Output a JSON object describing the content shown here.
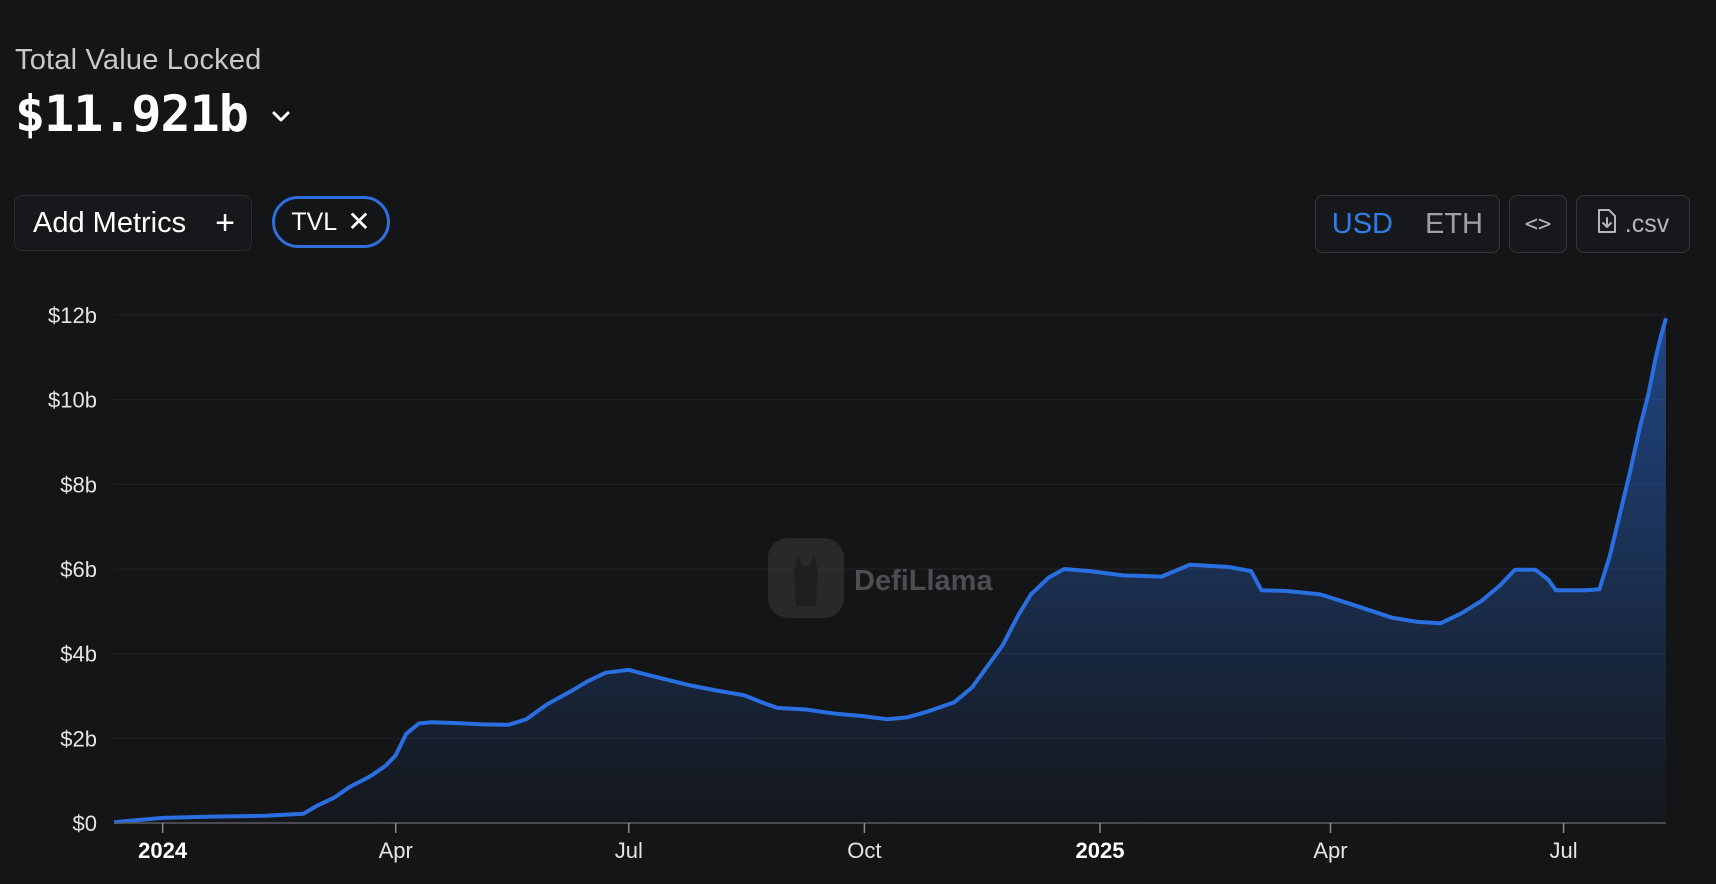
{
  "header": {
    "title": "Total Value Locked",
    "value": "$11.921b"
  },
  "toolbar": {
    "add_metrics_label": "Add Metrics",
    "chip_label": "TVL",
    "usd_label": "USD",
    "eth_label": "ETH",
    "embed_label": "<>",
    "csv_label": ".csv"
  },
  "watermark": "DefiLlama",
  "colors": {
    "accent": "#2f7fe6",
    "line": "#2a6fe0",
    "background": "#141517"
  },
  "chart_data": {
    "type": "area",
    "ylim": [
      0,
      12
    ],
    "y_unit": "$b",
    "y_ticks": [
      "$0",
      "$2b",
      "$4b",
      "$6b",
      "$8b",
      "$10b",
      "$12b"
    ],
    "x_ticks": [
      {
        "label": "2024",
        "date": "2024-01-01",
        "bold": true
      },
      {
        "label": "Apr",
        "date": "2024-04-01",
        "bold": false
      },
      {
        "label": "Jul",
        "date": "2024-07-01",
        "bold": false
      },
      {
        "label": "Oct",
        "date": "2024-10-01",
        "bold": false
      },
      {
        "label": "2025",
        "date": "2025-01-01",
        "bold": true
      },
      {
        "label": "Apr",
        "date": "2025-04-01",
        "bold": false
      },
      {
        "label": "Jul",
        "date": "2025-07-01",
        "bold": false
      }
    ],
    "x_range": [
      "2023-12-13",
      "2025-08-10"
    ],
    "grid": true,
    "series": [
      {
        "points": [
          [
            "2023-12-13",
            0.02
          ],
          [
            "2024-01-01",
            0.12
          ],
          [
            "2024-01-20",
            0.15
          ],
          [
            "2024-02-10",
            0.17
          ],
          [
            "2024-02-25",
            0.22
          ],
          [
            "2024-03-01",
            0.4
          ],
          [
            "2024-03-08",
            0.6
          ],
          [
            "2024-03-14",
            0.85
          ],
          [
            "2024-03-22",
            1.1
          ],
          [
            "2024-03-28",
            1.35
          ],
          [
            "2024-04-01",
            1.6
          ],
          [
            "2024-04-05",
            2.1
          ],
          [
            "2024-04-10",
            2.35
          ],
          [
            "2024-04-15",
            2.38
          ],
          [
            "2024-04-25",
            2.36
          ],
          [
            "2024-05-05",
            2.33
          ],
          [
            "2024-05-15",
            2.32
          ],
          [
            "2024-05-22",
            2.45
          ],
          [
            "2024-05-30",
            2.8
          ],
          [
            "2024-06-08",
            3.1
          ],
          [
            "2024-06-15",
            3.35
          ],
          [
            "2024-06-22",
            3.55
          ],
          [
            "2024-07-01",
            3.62
          ],
          [
            "2024-07-05",
            3.55
          ],
          [
            "2024-07-15",
            3.4
          ],
          [
            "2024-07-25",
            3.25
          ],
          [
            "2024-08-05",
            3.12
          ],
          [
            "2024-08-15",
            3.02
          ],
          [
            "2024-08-22",
            2.85
          ],
          [
            "2024-08-28",
            2.72
          ],
          [
            "2024-09-08",
            2.68
          ],
          [
            "2024-09-20",
            2.58
          ],
          [
            "2024-10-01",
            2.52
          ],
          [
            "2024-10-10",
            2.45
          ],
          [
            "2024-10-18",
            2.5
          ],
          [
            "2024-10-25",
            2.62
          ],
          [
            "2024-11-05",
            2.85
          ],
          [
            "2024-11-12",
            3.2
          ],
          [
            "2024-11-18",
            3.7
          ],
          [
            "2024-11-24",
            4.2
          ],
          [
            "2024-11-30",
            4.9
          ],
          [
            "2024-12-05",
            5.4
          ],
          [
            "2024-12-12",
            5.8
          ],
          [
            "2024-12-18",
            6.0
          ],
          [
            "2024-12-28",
            5.95
          ],
          [
            "2025-01-10",
            5.85
          ],
          [
            "2025-01-25",
            5.82
          ],
          [
            "2025-02-05",
            6.1
          ],
          [
            "2025-02-20",
            6.05
          ],
          [
            "2025-03-01",
            5.95
          ],
          [
            "2025-03-05",
            5.5
          ],
          [
            "2025-03-15",
            5.48
          ],
          [
            "2025-03-28",
            5.4
          ],
          [
            "2025-04-05",
            5.25
          ],
          [
            "2025-04-15",
            5.05
          ],
          [
            "2025-04-25",
            4.85
          ],
          [
            "2025-05-05",
            4.75
          ],
          [
            "2025-05-14",
            4.72
          ],
          [
            "2025-05-22",
            4.95
          ],
          [
            "2025-05-30",
            5.25
          ],
          [
            "2025-06-06",
            5.6
          ],
          [
            "2025-06-12",
            5.98
          ],
          [
            "2025-06-20",
            5.98
          ],
          [
            "2025-06-25",
            5.75
          ],
          [
            "2025-06-28",
            5.5
          ],
          [
            "2025-07-10",
            5.5
          ],
          [
            "2025-07-15",
            5.52
          ],
          [
            "2025-07-19",
            6.3
          ],
          [
            "2025-07-23",
            7.3
          ],
          [
            "2025-07-27",
            8.3
          ],
          [
            "2025-07-31",
            9.4
          ],
          [
            "2025-08-03",
            10.1
          ],
          [
            "2025-08-06",
            11.0
          ],
          [
            "2025-08-08",
            11.5
          ],
          [
            "2025-08-10",
            11.921
          ]
        ]
      }
    ]
  }
}
